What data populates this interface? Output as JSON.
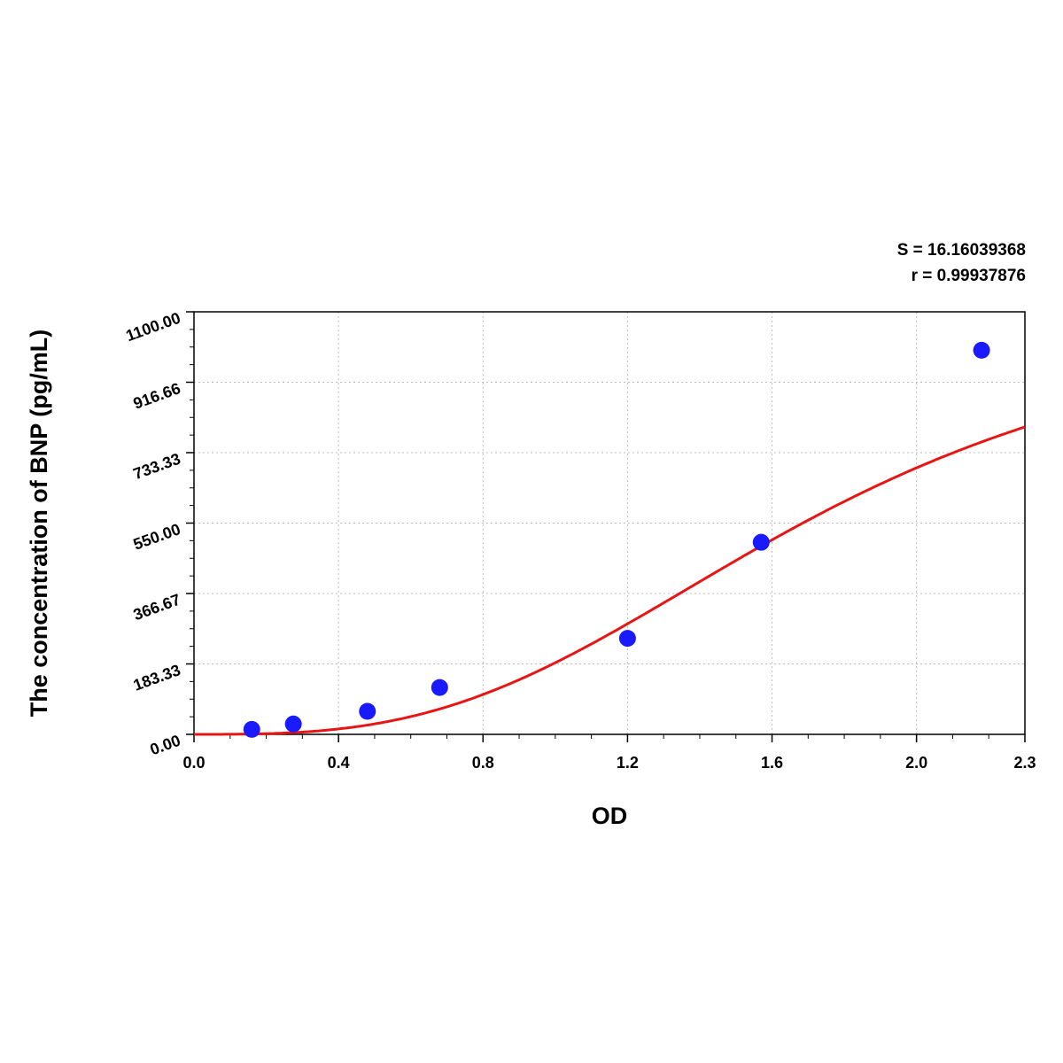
{
  "stats": {
    "s_text": "S = 16.16039368",
    "r_text": "r = 0.99937876"
  },
  "chart_data": {
    "type": "scatter",
    "xlabel": "OD",
    "ylabel": "The concentration of BNP (pg/mL)",
    "xlim": [
      0,
      2.3
    ],
    "ylim": [
      0,
      1100
    ],
    "x_ticks": [
      {
        "value": 0.0,
        "label": "0.0"
      },
      {
        "value": 0.4,
        "label": "0.4"
      },
      {
        "value": 0.8,
        "label": "0.8"
      },
      {
        "value": 1.2,
        "label": "1.2"
      },
      {
        "value": 1.6,
        "label": "1.6"
      },
      {
        "value": 2.0,
        "label": "2.0"
      },
      {
        "value": 2.3,
        "label": "2.3"
      }
    ],
    "y_ticks": [
      {
        "value": 0,
        "label": "0.00"
      },
      {
        "value": 183.33,
        "label": "183.33"
      },
      {
        "value": 366.67,
        "label": "366.67"
      },
      {
        "value": 550,
        "label": "550.00"
      },
      {
        "value": 733.33,
        "label": "733.33"
      },
      {
        "value": 916.66,
        "label": "916.66"
      },
      {
        "value": 1100,
        "label": "1100.00"
      }
    ],
    "grid": true,
    "points": [
      {
        "x": 0.16,
        "y": 13
      },
      {
        "x": 0.275,
        "y": 27
      },
      {
        "x": 0.48,
        "y": 60
      },
      {
        "x": 0.68,
        "y": 122
      },
      {
        "x": 1.2,
        "y": 250
      },
      {
        "x": 1.57,
        "y": 500
      },
      {
        "x": 2.18,
        "y": 1000
      }
    ],
    "fit_curve": {
      "type": "4pl",
      "a": 0,
      "d": 1135,
      "c": 1.72,
      "b": 3.0
    },
    "colors": {
      "points": "#1a1aff",
      "curve": "#e81515",
      "axis": "#000000",
      "grid": "#bdbdbd"
    }
  }
}
